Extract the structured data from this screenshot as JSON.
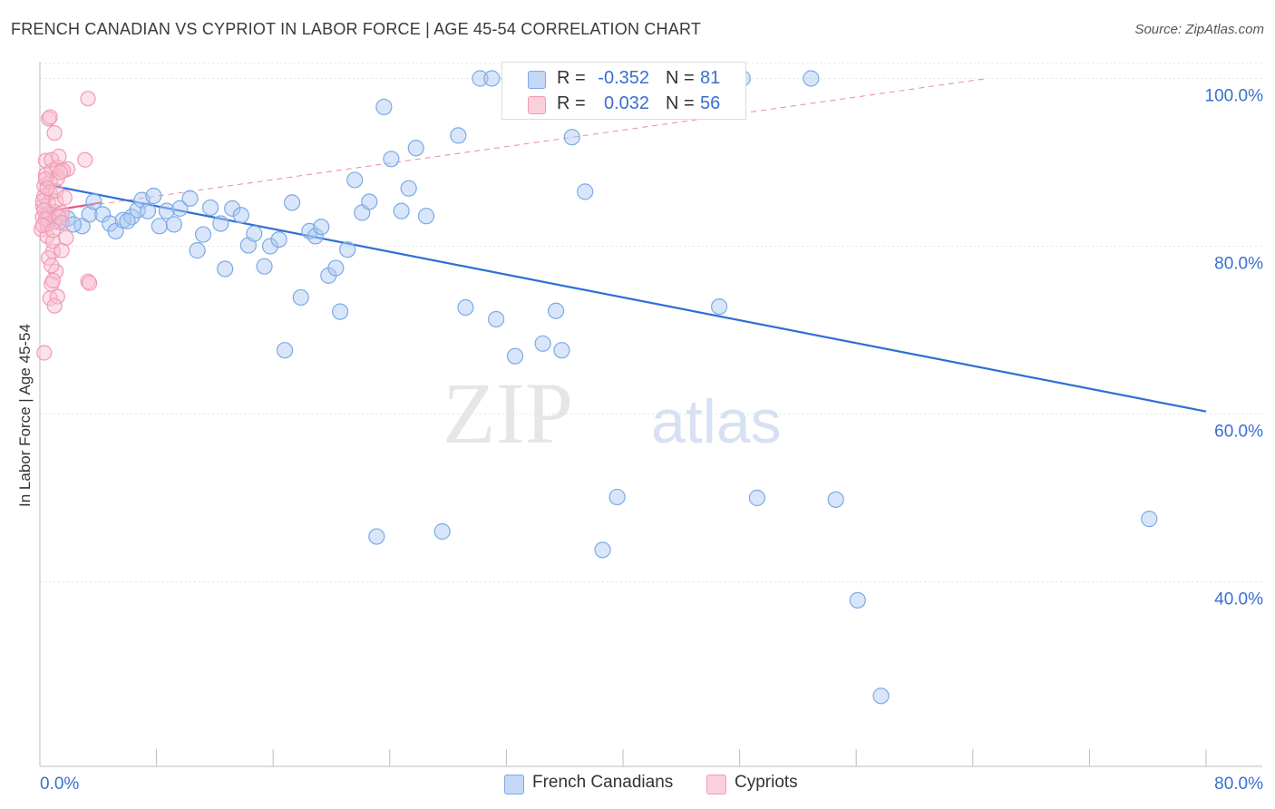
{
  "title": "FRENCH CANADIAN VS CYPRIOT IN LABOR FORCE | AGE 45-54 CORRELATION CHART",
  "source": "Source: ZipAtlas.com",
  "watermark": {
    "zip": "ZIP",
    "atlas": "atlas"
  },
  "legend_box": {
    "rows": [
      {
        "r_label": "R =",
        "r_value": "-0.352",
        "n_label": "N =",
        "n_value": "81"
      },
      {
        "r_label": "R =",
        "r_value": "0.032",
        "n_label": "N =",
        "n_value": "56"
      }
    ]
  },
  "bottom_legend": {
    "french": "French Canadians",
    "cypriots": "Cypriots"
  },
  "chart_data": {
    "type": "scatter",
    "title": "FRENCH CANADIAN VS CYPRIOT IN LABOR FORCE | AGE 45-54 CORRELATION CHART",
    "xlabel": "",
    "ylabel": "In Labor Force | Age 45-54",
    "xlim": [
      0,
      80
    ],
    "ylim": [
      18,
      102
    ],
    "x_tick_labels": [
      "0.0%",
      "80.0%"
    ],
    "y_ticks": [
      40,
      60,
      80,
      100
    ],
    "y_tick_labels": [
      "40.0%",
      "60.0%",
      "80.0%",
      "100.0%"
    ],
    "grid": true,
    "colors": {
      "french": "#7aaae8",
      "french_line": "#2e6fd4",
      "cypriots": "#f29ab4",
      "cypriots_line": "#e0567f"
    },
    "series": [
      {
        "name": "French Canadians",
        "r": -0.352,
        "n": 81,
        "trend": [
          [
            0,
            87.5
          ],
          [
            80,
            60.3
          ]
        ],
        "points": [
          [
            0.6,
            83.2
          ],
          [
            1.3,
            82.9
          ],
          [
            1.9,
            83.3
          ],
          [
            2.9,
            82.4
          ],
          [
            3.4,
            83.8
          ],
          [
            3.7,
            85.3
          ],
          [
            4.3,
            83.8
          ],
          [
            4.8,
            82.7
          ],
          [
            5.2,
            81.8
          ],
          [
            5.7,
            83.1
          ],
          [
            6.3,
            83.5
          ],
          [
            6.7,
            84.3
          ],
          [
            7.0,
            85.5
          ],
          [
            7.4,
            84.2
          ],
          [
            7.8,
            86.0
          ],
          [
            8.2,
            82.4
          ],
          [
            8.7,
            84.2
          ],
          [
            9.2,
            82.6
          ],
          [
            9.6,
            84.5
          ],
          [
            10.3,
            85.7
          ],
          [
            10.8,
            79.5
          ],
          [
            11.2,
            81.4
          ],
          [
            11.7,
            84.6
          ],
          [
            12.4,
            82.7
          ],
          [
            12.7,
            77.3
          ],
          [
            13.2,
            84.5
          ],
          [
            13.8,
            83.7
          ],
          [
            14.3,
            80.1
          ],
          [
            14.7,
            81.5
          ],
          [
            15.4,
            77.6
          ],
          [
            15.8,
            80.0
          ],
          [
            16.4,
            80.8
          ],
          [
            16.8,
            67.6
          ],
          [
            17.3,
            85.2
          ],
          [
            17.9,
            73.9
          ],
          [
            18.5,
            81.8
          ],
          [
            18.9,
            81.2
          ],
          [
            19.3,
            82.3
          ],
          [
            19.8,
            76.5
          ],
          [
            20.3,
            77.4
          ],
          [
            20.6,
            72.2
          ],
          [
            21.1,
            79.6
          ],
          [
            21.6,
            87.9
          ],
          [
            22.1,
            84.0
          ],
          [
            22.6,
            85.3
          ],
          [
            23.1,
            45.4
          ],
          [
            23.6,
            96.6
          ],
          [
            24.1,
            90.4
          ],
          [
            25.3,
            86.9
          ],
          [
            25.8,
            91.7
          ],
          [
            26.5,
            83.6
          ],
          [
            27.6,
            46.0
          ],
          [
            28.7,
            93.2
          ],
          [
            29.2,
            72.7
          ],
          [
            30.2,
            100.0
          ],
          [
            31.0,
            100.0
          ],
          [
            31.3,
            71.3
          ],
          [
            32.2,
            100.0
          ],
          [
            32.6,
            66.9
          ],
          [
            33.0,
            100.0
          ],
          [
            33.7,
            100.0
          ],
          [
            34.5,
            68.4
          ],
          [
            35.4,
            72.3
          ],
          [
            35.8,
            67.6
          ],
          [
            36.5,
            93.0
          ],
          [
            36.8,
            100.0
          ],
          [
            37.4,
            86.5
          ],
          [
            38.6,
            43.8
          ],
          [
            39.6,
            50.1
          ],
          [
            44.3,
            100.0
          ],
          [
            46.6,
            72.8
          ],
          [
            48.2,
            100.0
          ],
          [
            49.2,
            50.0
          ],
          [
            52.9,
            100.0
          ],
          [
            54.6,
            49.8
          ],
          [
            56.1,
            37.8
          ],
          [
            57.7,
            26.4
          ],
          [
            76.1,
            47.5
          ],
          [
            2.3,
            82.6
          ],
          [
            6.0,
            83.0
          ],
          [
            24.8,
            84.2
          ]
        ]
      },
      {
        "name": "Cypriots",
        "r": 0.032,
        "n": 56,
        "trend": [
          [
            0,
            84.0
          ],
          [
            4.2,
            85.2
          ]
        ],
        "trend_ext": [
          [
            0,
            84.0
          ],
          [
            65,
            100
          ]
        ],
        "points": [
          [
            0.1,
            82.0
          ],
          [
            0.2,
            83.5
          ],
          [
            0.2,
            84.8
          ],
          [
            0.3,
            86.0
          ],
          [
            0.3,
            87.2
          ],
          [
            0.4,
            88.5
          ],
          [
            0.4,
            90.2
          ],
          [
            0.5,
            81.2
          ],
          [
            0.5,
            82.6
          ],
          [
            0.6,
            83.9
          ],
          [
            0.6,
            85.1
          ],
          [
            0.7,
            86.4
          ],
          [
            0.7,
            87.7
          ],
          [
            0.8,
            89.0
          ],
          [
            0.8,
            90.3
          ],
          [
            0.9,
            79.4
          ],
          [
            0.9,
            80.6
          ],
          [
            1.0,
            82.9
          ],
          [
            1.0,
            84.1
          ],
          [
            1.1,
            85.4
          ],
          [
            1.1,
            86.6
          ],
          [
            1.2,
            88.1
          ],
          [
            1.2,
            89.4
          ],
          [
            1.3,
            90.7
          ],
          [
            0.6,
            95.2
          ],
          [
            0.7,
            95.4
          ],
          [
            1.0,
            93.5
          ],
          [
            3.3,
            97.6
          ],
          [
            3.1,
            90.3
          ],
          [
            0.3,
            67.3
          ],
          [
            0.7,
            73.8
          ],
          [
            0.8,
            75.5
          ],
          [
            1.1,
            77.0
          ],
          [
            0.9,
            75.9
          ],
          [
            3.3,
            75.8
          ],
          [
            3.4,
            75.6
          ],
          [
            1.5,
            79.5
          ],
          [
            1.8,
            81.0
          ],
          [
            1.5,
            84.0
          ],
          [
            1.7,
            85.8
          ],
          [
            1.9,
            89.2
          ],
          [
            1.6,
            89.0
          ],
          [
            1.4,
            88.8
          ],
          [
            0.4,
            88.0
          ],
          [
            0.5,
            86.9
          ],
          [
            0.2,
            85.4
          ],
          [
            0.3,
            84.3
          ],
          [
            0.4,
            83.2
          ],
          [
            0.2,
            82.5
          ],
          [
            0.6,
            78.6
          ],
          [
            0.8,
            77.7
          ],
          [
            1.2,
            74.0
          ],
          [
            1.0,
            72.9
          ],
          [
            1.3,
            83.5
          ],
          [
            1.5,
            82.8
          ],
          [
            0.9,
            81.9
          ]
        ]
      }
    ]
  }
}
